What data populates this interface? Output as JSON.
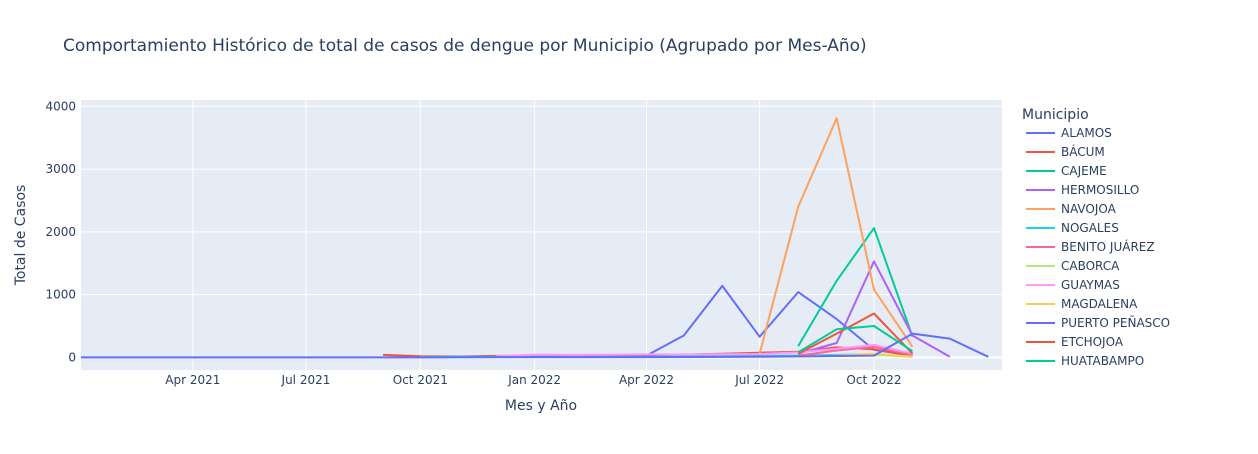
{
  "chart_data": {
    "type": "line",
    "title": "Comportamiento Histórico de total de casos de dengue por Municipio (Agrupado por Mes-Año)",
    "xlabel": "Mes y Año",
    "ylabel": "Total de Casos",
    "legend_title": "Municipio",
    "legend_position": "right",
    "grid": true,
    "x_type": "date",
    "xlim": [
      "2021-01-01",
      "2023-01-12"
    ],
    "ylim": [
      -200,
      4100
    ],
    "x_ticks": [
      {
        "date": "2021-04-01",
        "label": "Apr 2021"
      },
      {
        "date": "2021-07-01",
        "label": "Jul 2021"
      },
      {
        "date": "2021-10-01",
        "label": "Oct 2021"
      },
      {
        "date": "2022-01-01",
        "label": "Jan 2022"
      },
      {
        "date": "2022-04-01",
        "label": "Apr 2022"
      },
      {
        "date": "2022-07-01",
        "label": "Jul 2022"
      },
      {
        "date": "2022-10-01",
        "label": "Oct 2022"
      }
    ],
    "y_ticks": [
      {
        "value": 0,
        "label": "0"
      },
      {
        "value": 1000,
        "label": "1000"
      },
      {
        "value": 2000,
        "label": "2000"
      },
      {
        "value": 3000,
        "label": "3000"
      },
      {
        "value": 4000,
        "label": "4000"
      }
    ],
    "colors": {
      "plot_bg": "#e5ecf6",
      "grid": "#ffffff",
      "text": "#2a3f5f"
    },
    "series": [
      {
        "name": "ALAMOS",
        "color": "#636efa",
        "x": [
          "2022-04-01",
          "2022-05-01",
          "2022-06-01",
          "2022-07-01",
          "2022-08-01",
          "2022-09-01",
          "2022-10-01",
          "2022-11-01"
        ],
        "y": [
          30,
          350,
          1140,
          330,
          1040,
          610,
          120,
          30
        ]
      },
      {
        "name": "BÁCUM",
        "color": "#EF553B",
        "x": [
          "2021-09-01",
          "2021-10-01",
          "2021-11-01",
          "2021-12-01",
          "2022-01-01",
          "2022-02-01",
          "2022-03-01",
          "2022-04-01",
          "2022-05-01",
          "2022-06-01",
          "2022-07-01",
          "2022-08-01",
          "2022-09-01",
          "2022-10-01",
          "2022-11-01"
        ],
        "y": [
          40,
          20,
          15,
          25,
          30,
          25,
          30,
          35,
          45,
          60,
          75,
          90,
          160,
          130,
          30
        ]
      },
      {
        "name": "CAJEME",
        "color": "#00cc96",
        "x": [
          "2022-08-01",
          "2022-09-01",
          "2022-10-01",
          "2022-11-01"
        ],
        "y": [
          180,
          1220,
          2060,
          330
        ]
      },
      {
        "name": "HERMOSILLO",
        "color": "#ab63fa",
        "x": [
          "2022-08-01",
          "2022-09-01",
          "2022-10-01",
          "2022-11-01",
          "2022-12-01"
        ],
        "y": [
          60,
          230,
          1530,
          350,
          10
        ]
      },
      {
        "name": "NAVOJOA",
        "color": "#FFA15A",
        "x": [
          "2022-07-01",
          "2022-08-01",
          "2022-09-01",
          "2022-10-01",
          "2022-11-01"
        ],
        "y": [
          60,
          2400,
          3810,
          1080,
          170
        ]
      },
      {
        "name": "NOGALES",
        "color": "#19d3f3",
        "x": [
          "2021-10-01",
          "2021-11-01",
          "2021-12-01",
          "2022-01-01",
          "2022-02-01",
          "2022-03-01",
          "2022-04-01",
          "2022-05-01",
          "2022-06-01",
          "2022-07-01",
          "2022-08-01",
          "2022-09-01",
          "2022-10-01",
          "2022-11-01"
        ],
        "y": [
          5,
          10,
          8,
          12,
          10,
          10,
          12,
          15,
          20,
          25,
          30,
          40,
          50,
          15
        ]
      },
      {
        "name": "BENITO JUÁREZ",
        "color": "#FF6692",
        "x": [
          "2022-08-01",
          "2022-09-01",
          "2022-10-01",
          "2022-11-01"
        ],
        "y": [
          30,
          110,
          170,
          40
        ]
      },
      {
        "name": "CABORCA",
        "color": "#B6E880",
        "x": [
          "2022-08-01",
          "2022-09-01",
          "2022-10-01",
          "2022-11-01"
        ],
        "y": [
          10,
          25,
          40,
          10
        ]
      },
      {
        "name": "GUAYMAS",
        "color": "#FF97FF",
        "x": [
          "2021-12-01",
          "2022-01-01",
          "2022-02-01",
          "2022-03-01",
          "2022-04-01",
          "2022-05-01",
          "2022-06-01",
          "2022-07-01",
          "2022-08-01",
          "2022-09-01",
          "2022-10-01",
          "2022-11-01"
        ],
        "y": [
          20,
          45,
          40,
          45,
          50,
          45,
          50,
          55,
          80,
          140,
          200,
          60
        ]
      },
      {
        "name": "MAGDALENA",
        "color": "#FECB52",
        "x": [
          "2022-08-01",
          "2022-09-01",
          "2022-10-01",
          "2022-11-01"
        ],
        "y": [
          15,
          30,
          60,
          10
        ]
      },
      {
        "name": "PUERTO PEÑASCO",
        "color": "#636efa",
        "x": [
          "2021-01-01",
          "2021-04-01",
          "2021-07-01",
          "2021-10-01",
          "2022-01-01",
          "2022-04-01",
          "2022-07-01",
          "2022-10-01",
          "2022-11-01",
          "2022-12-01",
          "2023-01-01"
        ],
        "y": [
          0,
          0,
          0,
          0,
          5,
          5,
          10,
          30,
          380,
          300,
          10
        ]
      },
      {
        "name": "ETCHOJOA",
        "color": "#EF553B",
        "x": [
          "2022-08-01",
          "2022-09-01",
          "2022-10-01",
          "2022-11-01"
        ],
        "y": [
          60,
          380,
          700,
          60
        ]
      },
      {
        "name": "HUATABAMPO",
        "color": "#00cc96",
        "x": [
          "2022-08-01",
          "2022-09-01",
          "2022-10-01",
          "2022-11-01"
        ],
        "y": [
          80,
          450,
          500,
          100
        ]
      }
    ]
  }
}
